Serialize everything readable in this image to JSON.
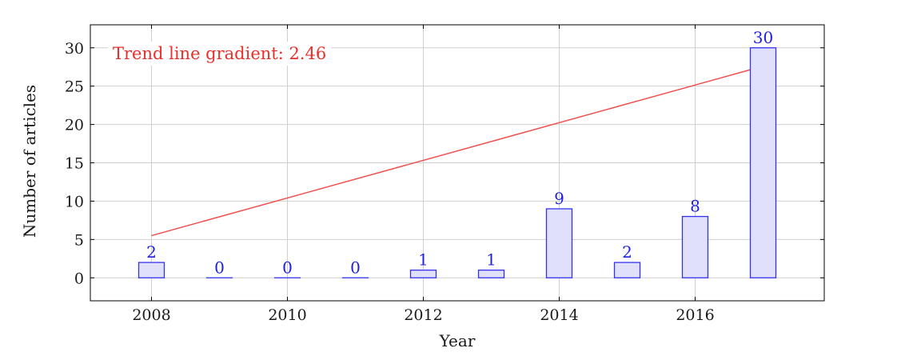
{
  "chart_data": {
    "type": "bar",
    "x": [
      2008,
      2009,
      2010,
      2011,
      2012,
      2013,
      2014,
      2015,
      2016,
      2017
    ],
    "values": [
      2,
      0,
      0,
      0,
      1,
      1,
      9,
      2,
      8,
      30
    ],
    "data_labels": [
      "2",
      "0",
      "0",
      "0",
      "1",
      "1",
      "9",
      "2",
      "8",
      "30"
    ],
    "xlabel": "Year",
    "ylabel": "Number of articles",
    "xlim": [
      2007.1,
      2017.9
    ],
    "ylim": [
      -3,
      33
    ],
    "x_ticks": [
      2008,
      2010,
      2012,
      2014,
      2016
    ],
    "x_tick_labels": [
      "2008",
      "2010",
      "2012",
      "2014",
      "2016"
    ],
    "y_ticks": [
      0,
      5,
      10,
      15,
      20,
      25,
      30
    ],
    "y_tick_labels": [
      "0",
      "5",
      "10",
      "15",
      "20",
      "25",
      "30"
    ],
    "grid": true,
    "trend_line": {
      "x": [
        2008,
        2017
      ],
      "y": [
        5.5,
        27.6
      ],
      "color": "#f05050"
    },
    "annotation": "Trend line gradient: 2.46",
    "colors": {
      "bar_fill": "#e0e0fa",
      "bar_stroke": "#3333ee",
      "data_label": "#2020e0",
      "annotation": "#e8302a",
      "grid": "#cfcfcf",
      "axis": "#000000"
    }
  }
}
